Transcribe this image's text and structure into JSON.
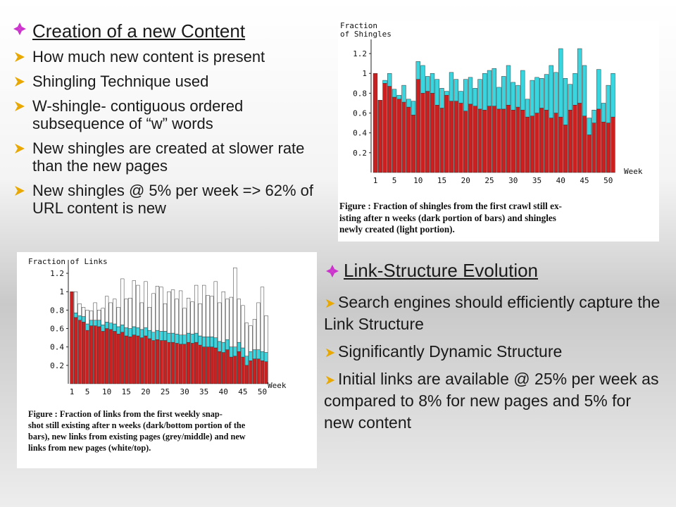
{
  "left_bullets": {
    "heading": "Creation of a new Content",
    "items": [
      "How much new content is present",
      "Shingling Technique used",
      "W-shingle- contiguous ordered subsequence of “w” words",
      "New shingles are created at slower rate than the new pages",
      "New shingles @ 5% per week  => 62% of URL content is new"
    ]
  },
  "right_bullets": {
    "heading": "Link-Structure Evolution",
    "items": [
      "Search engines should efficiently capture the Link Structure",
      "Significantly Dynamic Structure",
      "Initial links are available @ 25% per week as compared to 8% for new pages and 5% for new content"
    ]
  },
  "colors": {
    "bullet_heading": "#cc33cc",
    "bullet_arrow": "#e8a800",
    "red": "#cc1f1f",
    "cyan": "#39d6e0",
    "white_bar": "#ffffff"
  },
  "chart_data": [
    {
      "type": "bar",
      "stacked": true,
      "ylabel": "Fraction of Shingles",
      "xlabel": "Week",
      "ylim": [
        0,
        1.3
      ],
      "yticks": [
        "0.2",
        "0.4",
        "0.6",
        "0.8",
        "1",
        "1.2"
      ],
      "xticks": [
        "1",
        "5",
        "10",
        "15",
        "20",
        "25",
        "30",
        "35",
        "40",
        "45",
        "50"
      ],
      "categories": [
        1,
        2,
        3,
        4,
        5,
        6,
        7,
        8,
        9,
        10,
        11,
        12,
        13,
        14,
        15,
        16,
        17,
        18,
        19,
        20,
        21,
        22,
        23,
        24,
        25,
        26,
        27,
        28,
        29,
        30,
        31,
        32,
        33,
        34,
        35,
        36,
        37,
        38,
        39,
        40,
        41,
        42,
        43,
        44,
        45,
        46,
        47,
        48,
        49,
        50,
        51
      ],
      "series": [
        {
          "values": [
            1.0,
            0.73,
            0.9,
            0.87,
            0.76,
            0.74,
            0.71,
            0.66,
            0.58,
            0.94,
            0.8,
            0.82,
            0.8,
            0.68,
            0.65,
            0.78,
            0.72,
            0.72,
            0.7,
            0.62,
            0.69,
            0.67,
            0.64,
            0.63,
            0.67,
            0.67,
            0.64,
            0.64,
            0.68,
            0.63,
            0.66,
            0.63,
            0.56,
            0.57,
            0.6,
            0.65,
            0.63,
            0.55,
            0.6,
            0.56,
            0.48,
            0.63,
            0.68,
            0.7,
            0.57,
            0.38,
            0.5,
            0.64,
            0.51,
            0.5,
            0.56
          ]
        },
        {
          "values": [
            0.0,
            0.0,
            0.03,
            0.13,
            0.08,
            0.04,
            0.17,
            0.08,
            0.14,
            0.18,
            0.28,
            0.15,
            0.2,
            0.26,
            0.2,
            0.04,
            0.29,
            0.22,
            0.12,
            0.32,
            0.27,
            0.18,
            0.3,
            0.37,
            0.36,
            0.38,
            0.22,
            0.33,
            0.4,
            0.28,
            0.22,
            0.4,
            0.18,
            0.36,
            0.36,
            0.3,
            0.36,
            0.53,
            0.41,
            0.69,
            0.47,
            0.26,
            0.32,
            0.55,
            0.51,
            0.17,
            0.13,
            0.4,
            0.19,
            0.38,
            0.44
          ]
        }
      ],
      "caption_label": "Figure",
      "caption": "Fraction of shingles from the first crawl still existing after n weeks (dark portion of bars) and shingles newly created (light portion).",
      "caption_lines": [
        "Figure   :  Fraction of shingles from the first crawl still ex-",
        "isting after  n  weeks (dark portion of bars) and shingles",
        "newly created (light portion)."
      ]
    },
    {
      "type": "bar",
      "stacked": true,
      "ylabel": "Fraction of Links",
      "xlabel": "Week",
      "ylim": [
        0,
        1.3
      ],
      "yticks": [
        "0.2",
        "0.4",
        "0.6",
        "0.8",
        "1",
        "1.2"
      ],
      "xticks": [
        "1",
        "5",
        "10",
        "15",
        "20",
        "25",
        "30",
        "35",
        "40",
        "45",
        "50"
      ],
      "categories": [
        1,
        2,
        3,
        4,
        5,
        6,
        7,
        8,
        9,
        10,
        11,
        12,
        13,
        14,
        15,
        16,
        17,
        18,
        19,
        20,
        21,
        22,
        23,
        24,
        25,
        26,
        27,
        28,
        29,
        30,
        31,
        32,
        33,
        34,
        35,
        36,
        37,
        38,
        39,
        40,
        41,
        42,
        43,
        44,
        45,
        46,
        47,
        48,
        49,
        50,
        51
      ],
      "series": [
        {
          "values": [
            1.0,
            0.72,
            0.69,
            0.67,
            0.58,
            0.63,
            0.63,
            0.62,
            0.57,
            0.6,
            0.59,
            0.57,
            0.54,
            0.56,
            0.52,
            0.51,
            0.53,
            0.52,
            0.5,
            0.52,
            0.49,
            0.47,
            0.48,
            0.47,
            0.47,
            0.45,
            0.45,
            0.44,
            0.43,
            0.43,
            0.45,
            0.44,
            0.45,
            0.42,
            0.4,
            0.4,
            0.4,
            0.39,
            0.35,
            0.34,
            0.37,
            0.29,
            0.3,
            0.35,
            0.29,
            0.2,
            0.25,
            0.27,
            0.27,
            0.25,
            0.24
          ]
        },
        {
          "values": [
            0.0,
            0.05,
            0.05,
            0.06,
            0.07,
            0.06,
            0.06,
            0.07,
            0.07,
            0.07,
            0.07,
            0.08,
            0.08,
            0.08,
            0.09,
            0.09,
            0.09,
            0.09,
            0.09,
            0.09,
            0.09,
            0.09,
            0.1,
            0.1,
            0.1,
            0.1,
            0.1,
            0.1,
            0.1,
            0.1,
            0.1,
            0.1,
            0.1,
            0.1,
            0.11,
            0.11,
            0.11,
            0.11,
            0.11,
            0.11,
            0.11,
            0.11,
            0.1,
            0.1,
            0.1,
            0.1,
            0.1,
            0.1,
            0.1,
            0.1,
            0.1
          ]
        },
        {
          "values": [
            0.0,
            0.23,
            0.13,
            0.1,
            0.15,
            0.1,
            0.19,
            0.11,
            0.18,
            0.28,
            0.22,
            0.27,
            0.21,
            0.5,
            0.31,
            0.33,
            0.5,
            0.46,
            0.29,
            0.5,
            0.25,
            0.42,
            0.48,
            0.48,
            0.3,
            0.45,
            0.47,
            0.38,
            0.48,
            0.29,
            0.38,
            0.35,
            0.52,
            0.35,
            0.56,
            0.45,
            0.44,
            0.61,
            0.42,
            0.55,
            0.44,
            0.54,
            0.86,
            0.47,
            0.46,
            0.36,
            0.28,
            0.33,
            0.51,
            0.7,
            0.4
          ]
        }
      ],
      "caption_label": "Figure",
      "caption": "Fraction of links from the first weekly snapshot still existing after n weeks (dark/bottom portion of the bars), new links from existing pages (grey/middle) and new links from new pages (white/top).",
      "caption_lines": [
        "Figure  :   Fraction of links from the first weekly snap-",
        "shot still existing after  n  weeks (dark/bottom portion of the",
        "bars), new links from existing pages (grey/middle) and new",
        "links from new pages (white/top)."
      ]
    }
  ]
}
